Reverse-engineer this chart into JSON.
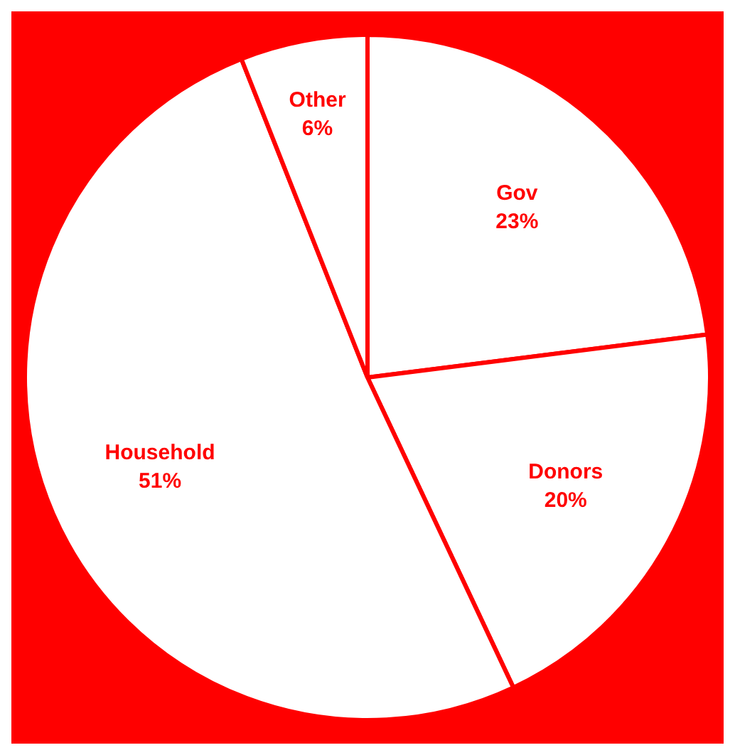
{
  "chart_data": {
    "type": "pie",
    "categories": [
      "Gov",
      "Donors",
      "Household",
      "Other"
    ],
    "values": [
      23,
      20,
      51,
      6
    ],
    "colors": [
      "#ffffff",
      "#ffffff",
      "#ffffff",
      "#ffffff"
    ],
    "value_labels": [
      "23%",
      "20%",
      "51%",
      "6%"
    ],
    "legend": false
  }
}
